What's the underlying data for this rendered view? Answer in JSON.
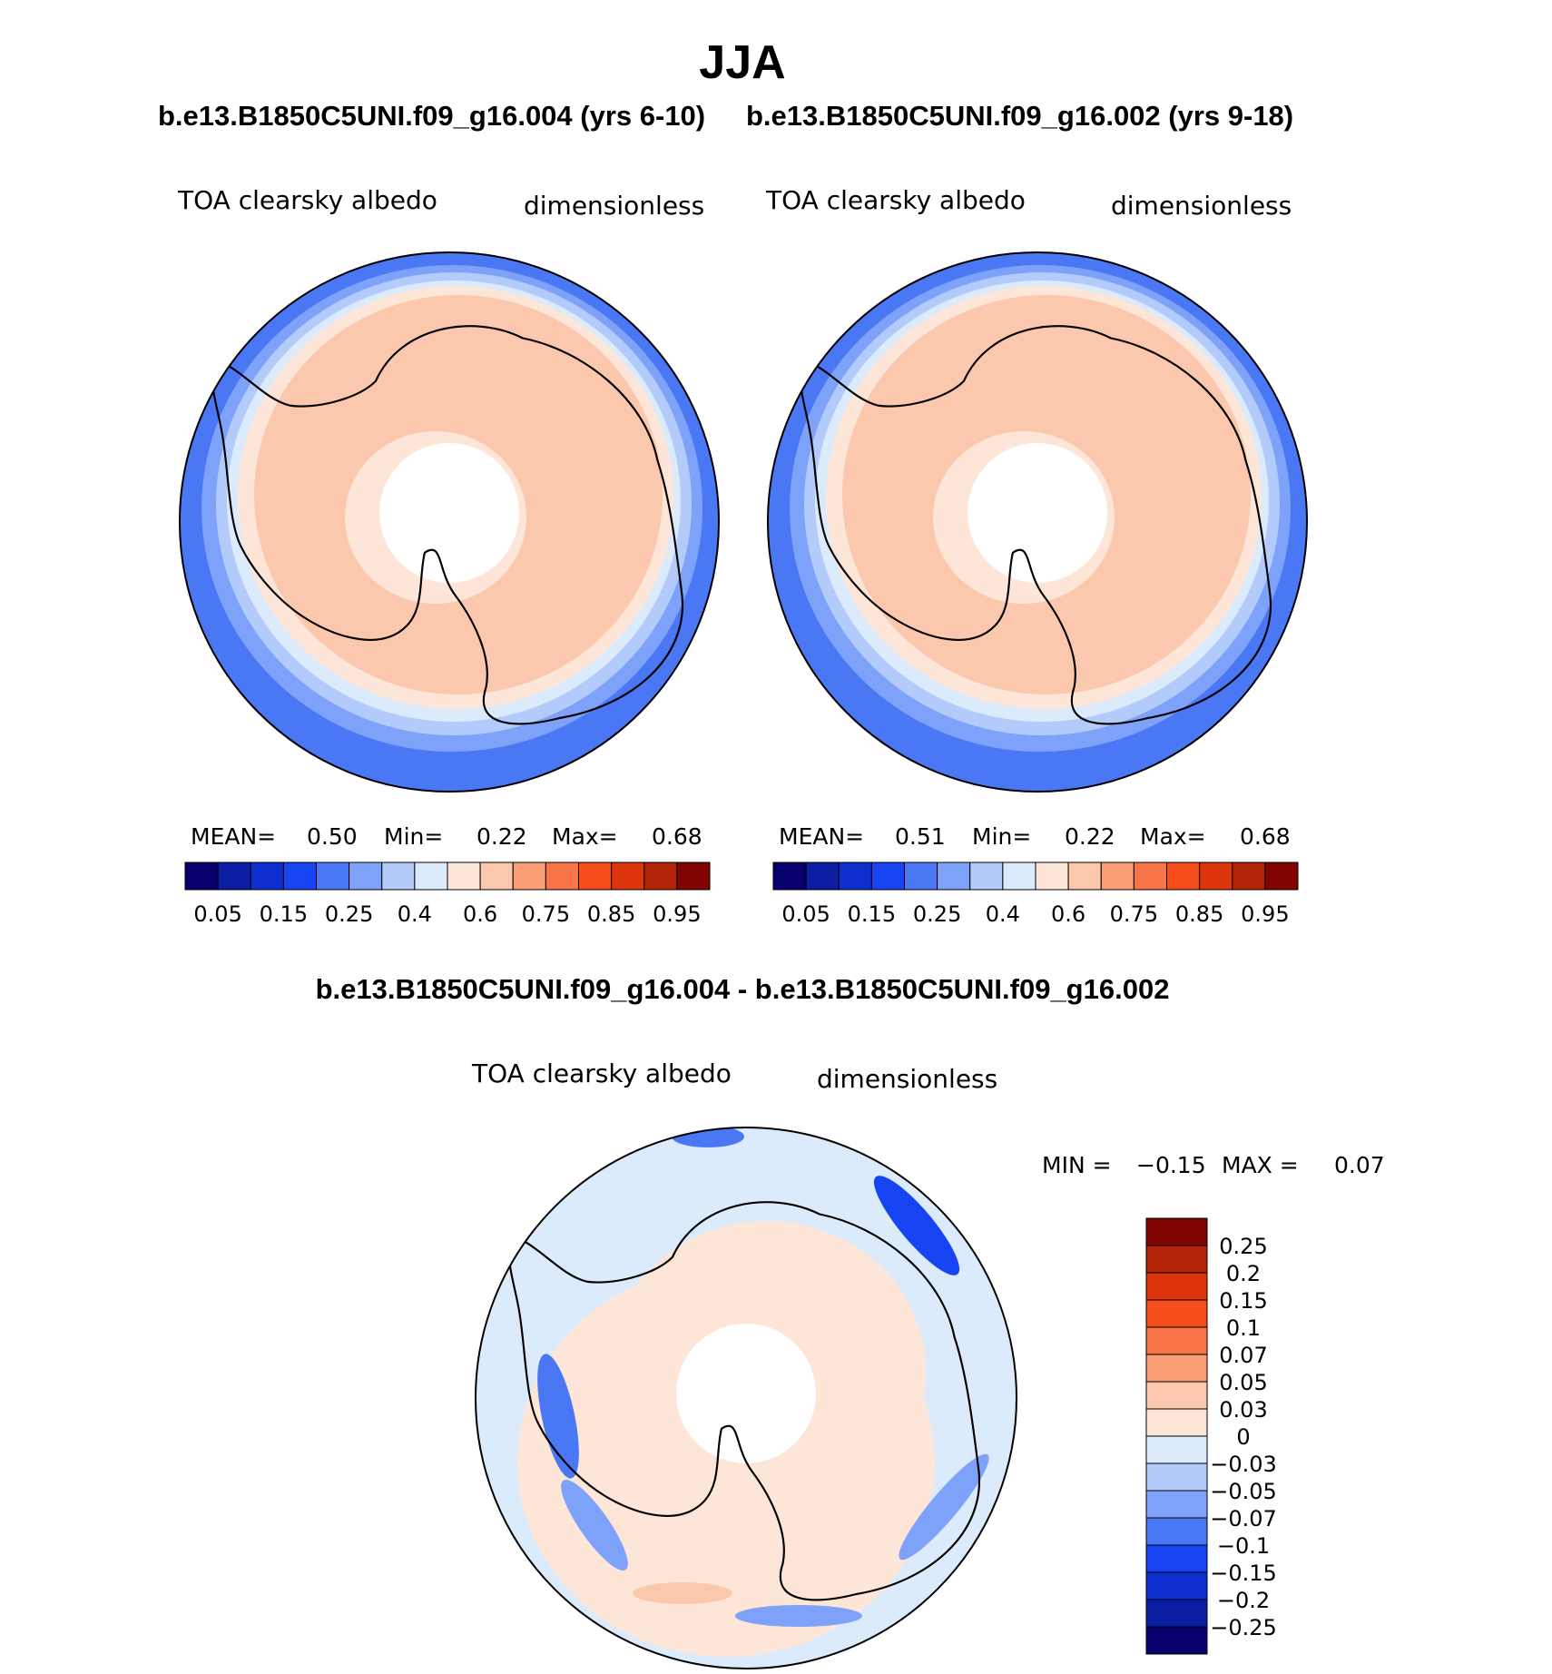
{
  "figure": {
    "title": "JJA",
    "subtitle_left": "b.e13.B1850C5UNI.f09_g16.004 (yrs 6-10)",
    "subtitle_right": "b.e13.B1850C5UNI.f09_g16.002 (yrs 9-18)",
    "diff_title": "b.e13.B1850C5UNI.f09_g16.004 - b.e13.B1850C5UNI.f09_g16.002"
  },
  "colors": {
    "abs": [
      "#08006e",
      "#0b1ea3",
      "#0d2fcf",
      "#1744f2",
      "#4a78f5",
      "#7ea2fa",
      "#b3cbfb",
      "#dcebfb",
      "#fde6d8",
      "#fbc8ae",
      "#f99e75",
      "#f87449",
      "#f54d1c",
      "#dd350c",
      "#b12408",
      "#820400"
    ],
    "diff": [
      "#08006e",
      "#0b1ea3",
      "#0d2fcf",
      "#1744f2",
      "#4a78f5",
      "#7ea2fa",
      "#b3cbfb",
      "#dcebfb",
      "#fde6d8",
      "#fbc8ae",
      "#f99e75",
      "#f87449",
      "#f54d1c",
      "#dd350c",
      "#b12408",
      "#820400"
    ],
    "ocean_outer": "#4a78f5",
    "ice_main": "#fbc8ae",
    "ice_light": "#fde6d8",
    "diff_bg": "#dcebfb"
  },
  "chart_data": [
    {
      "type": "heatmap",
      "projection": "south-polar-stereographic",
      "title": "TOA clearsky albedo",
      "units": "dimensionless",
      "stats": {
        "mean_label": "MEAN=",
        "mean": "0.50",
        "min_label": "Min=",
        "min": "0.22",
        "max_label": "Max=",
        "max": "0.68"
      },
      "colorbar": {
        "orientation": "horizontal",
        "labels": [
          "0.05",
          "0.15",
          "0.25",
          "0.4",
          "0.6",
          "0.75",
          "0.85",
          "0.95"
        ]
      }
    },
    {
      "type": "heatmap",
      "projection": "south-polar-stereographic",
      "title": "TOA clearsky albedo",
      "units": "dimensionless",
      "stats": {
        "mean_label": "MEAN=",
        "mean": "0.51",
        "min_label": "Min=",
        "min": "0.22",
        "max_label": "Max=",
        "max": "0.68"
      },
      "colorbar": {
        "orientation": "horizontal",
        "labels": [
          "0.05",
          "0.15",
          "0.25",
          "0.4",
          "0.6",
          "0.75",
          "0.85",
          "0.95"
        ]
      }
    },
    {
      "type": "heatmap",
      "projection": "south-polar-stereographic",
      "title": "TOA clearsky albedo",
      "units": "dimensionless",
      "stats": {
        "min_label": "MIN =",
        "min": "−0.15",
        "max_label": "MAX =",
        "max": "0.07"
      },
      "colorbar": {
        "orientation": "vertical",
        "labels": [
          "0.25",
          "0.2",
          "0.15",
          "0.1",
          "0.07",
          "0.05",
          "0.03",
          "0",
          "−0.03",
          "−0.05",
          "−0.07",
          "−0.1",
          "−0.15",
          "−0.2",
          "−0.25"
        ]
      }
    }
  ]
}
